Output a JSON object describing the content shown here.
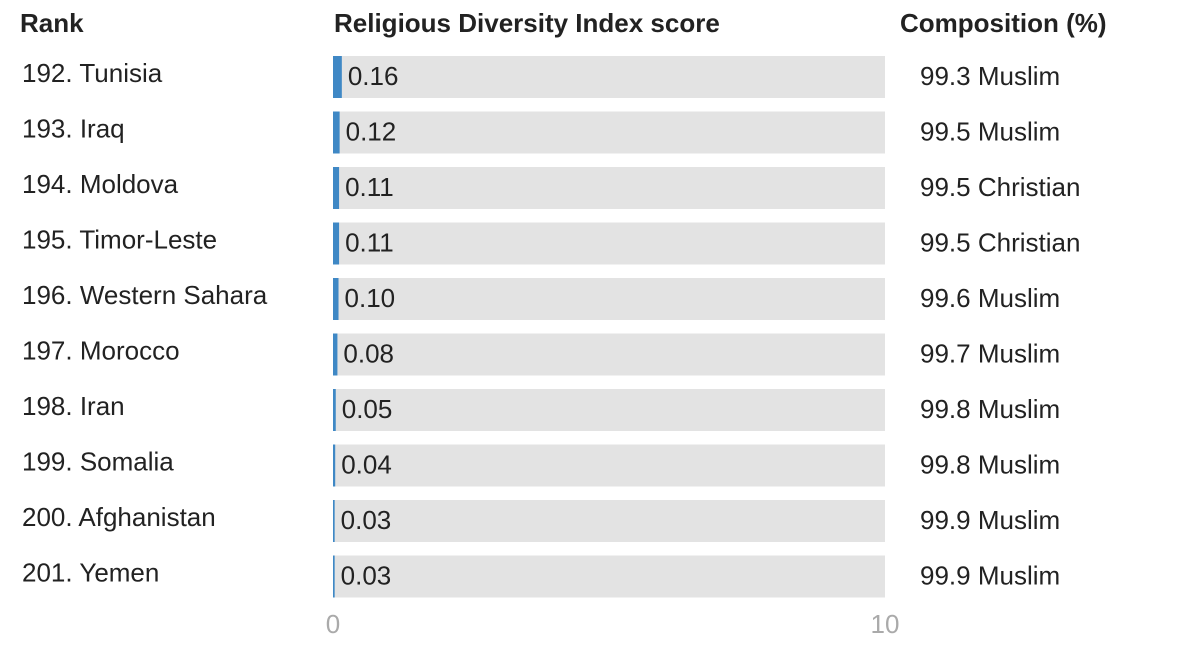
{
  "chart_data": {
    "type": "bar",
    "headers": {
      "rank": "Rank",
      "score": "Religious Diversity Index score",
      "composition": "Composition (%)"
    },
    "categories": [
      "192. Tunisia",
      "193. Iraq",
      "194. Moldova",
      "195. Timor-Leste",
      "196. Western Sahara",
      "197. Morocco",
      "198. Iran",
      "199. Somalia",
      "200. Afghanistan",
      "201. Yemen"
    ],
    "values": [
      0.16,
      0.12,
      0.11,
      0.11,
      0.1,
      0.08,
      0.05,
      0.04,
      0.03,
      0.03
    ],
    "value_labels": [
      "0.16",
      "0.12",
      "0.11",
      "0.11",
      "0.10",
      "0.08",
      "0.05",
      "0.04",
      "0.03",
      "0.03"
    ],
    "composition": [
      "99.3 Muslim",
      "99.5 Muslim",
      "99.5 Christian",
      "99.5 Christian",
      "99.6 Muslim",
      "99.7 Muslim",
      "99.8 Muslim",
      "99.8 Muslim",
      "99.9 Muslim",
      "99.9 Muslim"
    ],
    "color": "#3f88c5",
    "xlim": [
      0,
      10
    ],
    "xticks": [
      0,
      10
    ]
  }
}
